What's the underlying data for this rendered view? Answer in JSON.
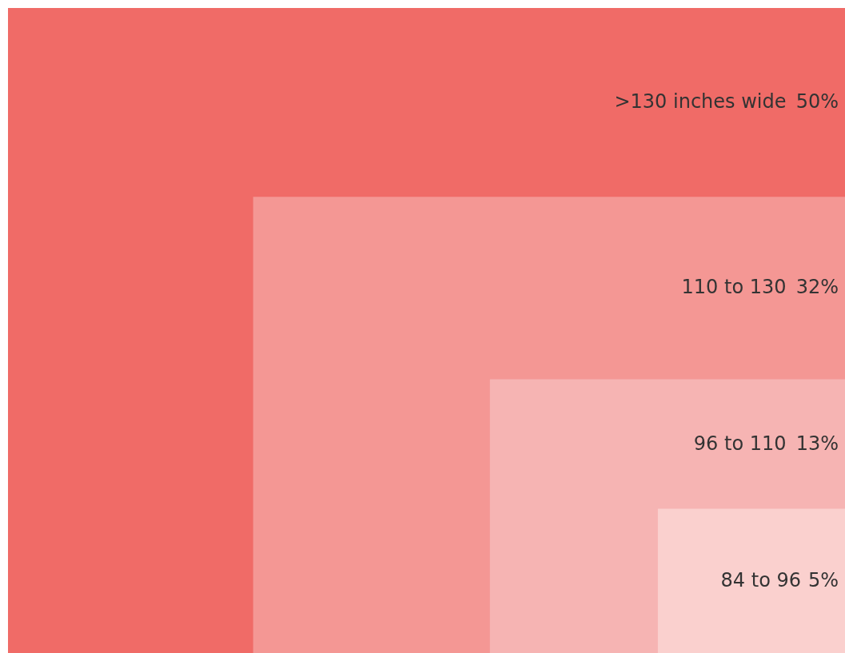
{
  "chart_data": {
    "type": "other",
    "categories": [
      ">130 inches wide",
      "110 to 130",
      "96 to 110",
      "84 to 96"
    ],
    "values": [
      50,
      32,
      13,
      5
    ],
    "value_labels": [
      "50%",
      "32%",
      "13%",
      "5%"
    ],
    "colors": [
      "#f06b67",
      "#f49794",
      "#f6b4b3",
      "#fad0ce"
    ]
  }
}
